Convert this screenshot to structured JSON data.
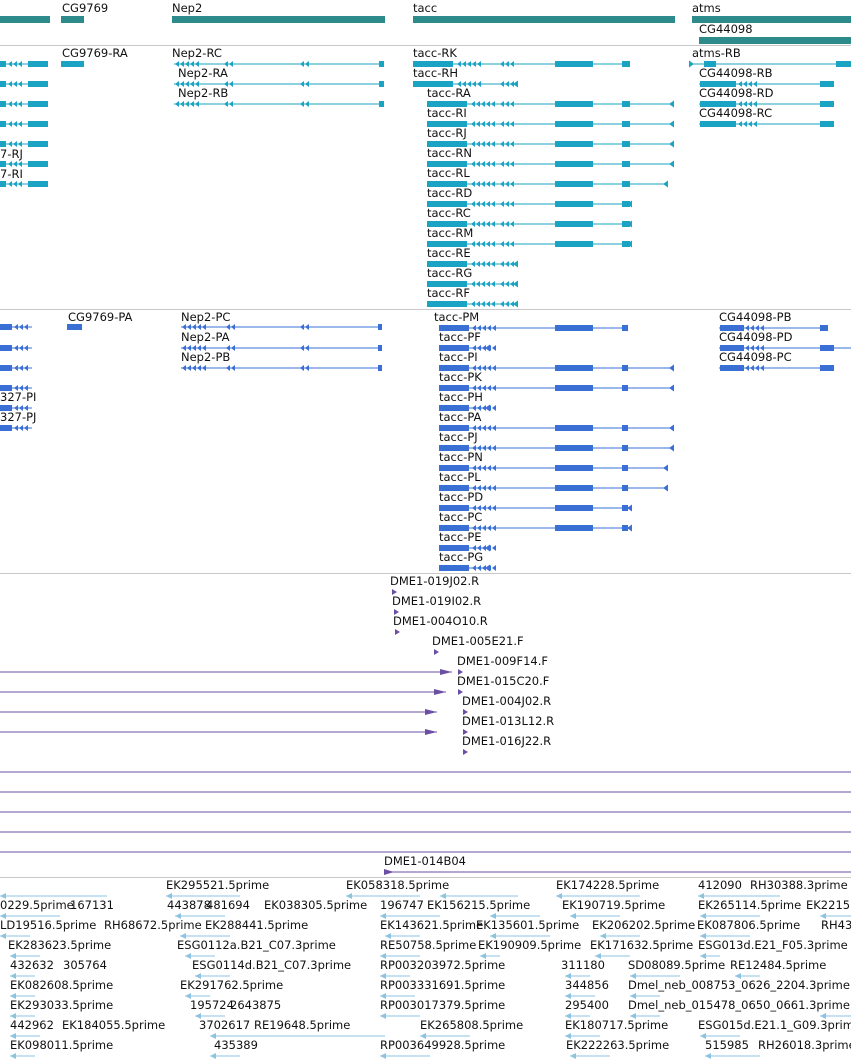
{
  "colors": {
    "gene": "#2e8b8b",
    "transcript": "#1aa3c2",
    "protein": "#3a6fd6",
    "clone": "#6a4fa3",
    "est": "#8ec3e0",
    "divider": "#c8c8c8"
  },
  "genes": [
    {
      "label": "CG9769"
    },
    {
      "label": "Nep2"
    },
    {
      "label": "tacc"
    },
    {
      "label": "atms"
    },
    {
      "label": "CG44098"
    }
  ],
  "transcripts": [
    {
      "label": "CG9769-RA"
    },
    {
      "label": "Nep2-RC"
    },
    {
      "label": "Nep2-RA"
    },
    {
      "label": "Nep2-RB"
    },
    {
      "label": "tacc-RK"
    },
    {
      "label": "tacc-RH"
    },
    {
      "label": "tacc-RA"
    },
    {
      "label": "tacc-RI"
    },
    {
      "label": "tacc-RJ"
    },
    {
      "label": "tacc-RN"
    },
    {
      "label": "tacc-RL"
    },
    {
      "label": "tacc-RD"
    },
    {
      "label": "tacc-RC"
    },
    {
      "label": "tacc-RM"
    },
    {
      "label": "tacc-RE"
    },
    {
      "label": "tacc-RG"
    },
    {
      "label": "tacc-RF"
    },
    {
      "label": "atms-RB"
    },
    {
      "label": "CG44098-RB"
    },
    {
      "label": "CG44098-RD"
    },
    {
      "label": "CG44098-RC"
    },
    {
      "label": "7-RJ"
    },
    {
      "label": "7-RI"
    }
  ],
  "proteins": [
    {
      "label": "CG9769-PA"
    },
    {
      "label": "Nep2-PC"
    },
    {
      "label": "Nep2-PA"
    },
    {
      "label": "Nep2-PB"
    },
    {
      "label": "tacc-PM"
    },
    {
      "label": "tacc-PF"
    },
    {
      "label": "tacc-PI"
    },
    {
      "label": "tacc-PK"
    },
    {
      "label": "tacc-PH"
    },
    {
      "label": "tacc-PA"
    },
    {
      "label": "tacc-PJ"
    },
    {
      "label": "tacc-PN"
    },
    {
      "label": "tacc-PL"
    },
    {
      "label": "tacc-PD"
    },
    {
      "label": "tacc-PC"
    },
    {
      "label": "tacc-PE"
    },
    {
      "label": "tacc-PG"
    },
    {
      "label": "CG44098-PB"
    },
    {
      "label": "CG44098-PD"
    },
    {
      "label": "CG44098-PC"
    },
    {
      "label": "327-PI"
    },
    {
      "label": "327-PJ"
    }
  ],
  "clones": [
    {
      "label": "DME1-019J02.R"
    },
    {
      "label": "DME1-019I02.R"
    },
    {
      "label": "DME1-004O10.R"
    },
    {
      "label": "DME1-005E21.F"
    },
    {
      "label": "DME1-009F14.F"
    },
    {
      "label": "DME1-015C20.F"
    },
    {
      "label": "DME1-004J02.R"
    },
    {
      "label": "DME1-013L12.R"
    },
    {
      "label": "DME1-016J22.R"
    },
    {
      "label": "DME1-014B04"
    }
  ],
  "ests": [
    {
      "label": "EK295521.5prime"
    },
    {
      "label": "EK058318.5prime"
    },
    {
      "label": "EK174228.5prime"
    },
    {
      "label": "412090"
    },
    {
      "label": "RH30388.3prime"
    },
    {
      "label": "0229.5prime"
    },
    {
      "label": "167131"
    },
    {
      "label": "443878"
    },
    {
      "label": "481694"
    },
    {
      "label": "EK288441.5prime"
    },
    {
      "label": "EK038305.5prime"
    },
    {
      "label": "196747"
    },
    {
      "label": "EK156215.5prime"
    },
    {
      "label": "EK190719.5prime"
    },
    {
      "label": "EK265114.5prime"
    },
    {
      "label": "EK2215"
    },
    {
      "label": "LD19516.5prime"
    },
    {
      "label": "RH68672.5prime"
    },
    {
      "label": "EK143621.5prime"
    },
    {
      "label": "EK135601.5prime"
    },
    {
      "label": "EK206202.5prime"
    },
    {
      "label": "EK087806.5prime"
    },
    {
      "label": "RH43"
    },
    {
      "label": "EK283623.5prime"
    },
    {
      "label": "ESG0112a.B21_C07.3prime"
    },
    {
      "label": "RE50758.5prime"
    },
    {
      "label": "EK190909.5prime"
    },
    {
      "label": "EK171632.5prime"
    },
    {
      "label": "ESG013d.E21_F05.3prime"
    },
    {
      "label": "432632"
    },
    {
      "label": "305764"
    },
    {
      "label": "ESG0114d.B21_C07.3prime"
    },
    {
      "label": "RP003203972.5prime"
    },
    {
      "label": "311180"
    },
    {
      "label": "SD08089.5prime"
    },
    {
      "label": "RE12484.5prime"
    },
    {
      "label": "EK082608.5prime"
    },
    {
      "label": "EK291762.5prime"
    },
    {
      "label": "RP003331691.5prime"
    },
    {
      "label": "344856"
    },
    {
      "label": "Dmel_neb_008753_0626_2204.3prime"
    },
    {
      "label": "EK293033.5prime"
    },
    {
      "label": "195724"
    },
    {
      "label": "2643875"
    },
    {
      "label": "RP003017379.5prime"
    },
    {
      "label": "295400"
    },
    {
      "label": "Dmel_neb_015478_0650_0661.3prime"
    },
    {
      "label": "442962"
    },
    {
      "label": "EK184055.5prime"
    },
    {
      "label": "3702617"
    },
    {
      "label": "RE19648.5prime"
    },
    {
      "label": "EK265808.5prime"
    },
    {
      "label": "EK180717.5prime"
    },
    {
      "label": "ESG015d.E21.1_G09.3prime"
    },
    {
      "label": "EK098011.5prime"
    },
    {
      "label": "435389"
    },
    {
      "label": "RP003649928.5prime"
    },
    {
      "label": "EK222263.5prime"
    },
    {
      "label": "515985"
    },
    {
      "label": "RH26018.3prime"
    }
  ]
}
